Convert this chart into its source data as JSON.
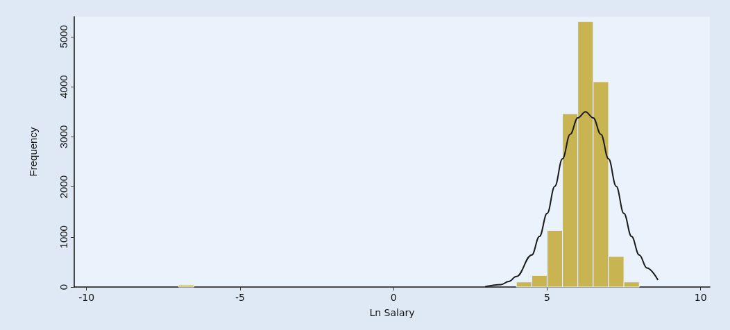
{
  "chart_data": {
    "type": "histogram",
    "xlabel": "Ln Salary",
    "ylabel": "Frequency",
    "bins": [
      -7,
      -6.5,
      -6,
      -5.5,
      -5,
      -4.5,
      -4,
      -3.5,
      -3,
      -2.5,
      -2,
      -1.5,
      -1,
      -0.5,
      0,
      0.5,
      1,
      1.5,
      2,
      2.5,
      3,
      3.5,
      4,
      4.5,
      5,
      5.5,
      6,
      6.5,
      7,
      7.5,
      8
    ],
    "values": [
      40,
      0,
      0,
      0,
      0,
      0,
      0,
      0,
      0,
      0,
      0,
      0,
      0,
      0,
      0,
      0,
      0,
      0,
      0,
      0,
      0,
      0,
      100,
      230,
      1130,
      3460,
      5300,
      4100,
      610,
      100
    ],
    "color": "#c8b450",
    "series": [
      {
        "type": "line",
        "color": "#1a1a1a",
        "x": [
          3,
          3.5,
          3.75,
          4,
          4.5,
          4.75,
          5,
          5.25,
          5.5,
          5.75,
          6,
          6.25,
          6.5,
          6.75,
          7,
          7.25,
          7.5,
          7.75,
          8,
          8.25,
          8.6
        ],
        "values": [
          10,
          50,
          110,
          210,
          640,
          1010,
          1470,
          2010,
          2560,
          3050,
          3380,
          3500,
          3380,
          3050,
          2560,
          2010,
          1470,
          1010,
          640,
          380,
          150
        ]
      }
    ],
    "xlim": [
      -10.4,
      10.3
    ],
    "xticks": [
      -10,
      -5,
      0,
      5,
      10
    ],
    "ylim": [
      0,
      5400
    ],
    "yticks": [
      0,
      1000,
      2000,
      3000,
      4000,
      5000
    ],
    "grid": false,
    "marker": "none",
    "line_style": "solid"
  }
}
